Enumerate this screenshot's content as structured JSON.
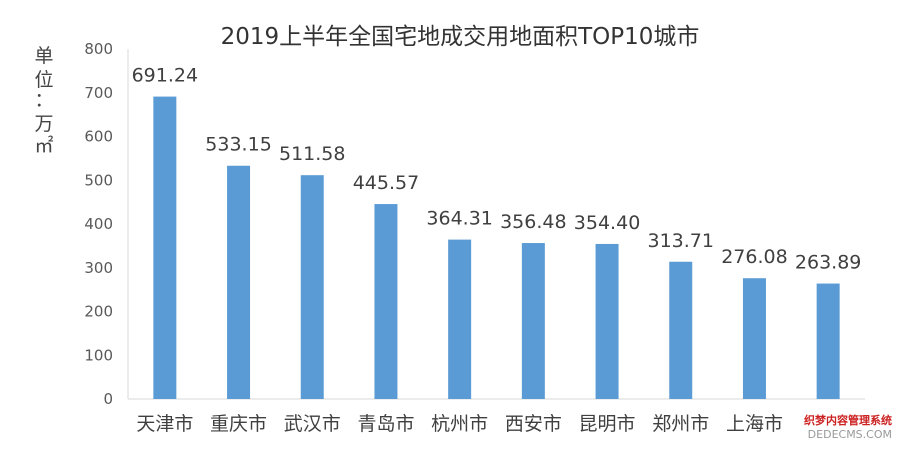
{
  "chart_data": {
    "type": "bar",
    "title": "2019上半年全国宅地成交用地面积TOP10城市",
    "ylabel_chars": [
      "单",
      "位",
      "：",
      "万",
      "㎡"
    ],
    "xlabel": "",
    "ylim": [
      0,
      800
    ],
    "yticks": [
      0,
      100,
      200,
      300,
      400,
      500,
      600,
      700,
      800
    ],
    "categories": [
      "天津市",
      "重庆市",
      "武汉市",
      "青岛市",
      "杭州市",
      "西安市",
      "昆明市",
      "郑州市",
      "上海市",
      ""
    ],
    "values": [
      691.24,
      533.15,
      511.58,
      445.57,
      364.31,
      356.48,
      354.4,
      313.71,
      276.08,
      263.89
    ],
    "data_labels": [
      "691.24",
      "533.15",
      "511.58",
      "445.57",
      "364.31",
      "356.48",
      "354.40",
      "313.71",
      "276.08",
      "263.89"
    ],
    "bar_color": "#5B9BD5",
    "grid": false,
    "legend": "none"
  },
  "watermark": {
    "line1": "织梦内容管理系统",
    "line2": "DEDECMS.COM"
  }
}
